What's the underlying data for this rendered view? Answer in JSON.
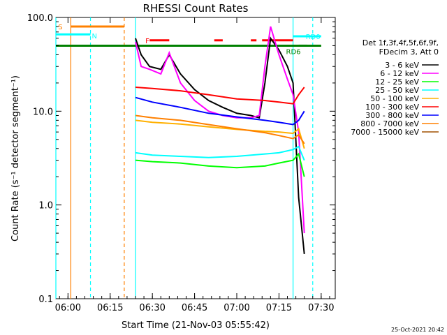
{
  "chart_data": {
    "type": "line",
    "title": "RHESSI Count Rates",
    "xlabel": "Start Time (21-Nov-03 05:55:42)",
    "ylabel": "Count Rate (s⁻¹ detector segment⁻¹)",
    "y_scale": "log",
    "ylim": [
      0.1,
      100.0
    ],
    "y_ticks": [
      "0.1",
      "1.0",
      "10.0",
      "100.0"
    ],
    "xlim": [
      "05:55:42",
      "07:35:00"
    ],
    "x_ticks": [
      "06:00",
      "06:15",
      "06:30",
      "06:45",
      "07:00",
      "07:15",
      "07:30"
    ],
    "legend_position": "right",
    "legend_header": [
      "Det 1f,3f,4f,5f,6f,9f,",
      "FDecim 3, Att 0"
    ],
    "timestamp": "25-Oct-2021 20:42",
    "flag_labels": [
      "S",
      "N",
      "F",
      "RD6",
      "RD0"
    ],
    "series": [
      {
        "name": "3 - 6 keV",
        "color": "#000000",
        "x": [
          "06:24",
          "06:26",
          "06:29",
          "06:33",
          "06:36",
          "06:40",
          "06:45",
          "06:50",
          "06:55",
          "07:00",
          "07:05",
          "07:08",
          "07:10",
          "07:12",
          "07:15",
          "07:18",
          "07:20",
          "07:22",
          "07:24"
        ],
        "values": [
          60,
          40,
          30,
          28,
          40,
          25,
          17,
          13,
          11,
          9.5,
          9,
          8.5,
          20,
          60,
          45,
          30,
          20,
          1.2,
          0.3
        ]
      },
      {
        "name": "6 - 12 keV",
        "color": "#ff00ff",
        "x": [
          "06:24",
          "06:26",
          "06:29",
          "06:33",
          "06:36",
          "06:40",
          "06:45",
          "06:50",
          "06:55",
          "07:00",
          "07:05",
          "07:08",
          "07:10",
          "07:12",
          "07:15",
          "07:18",
          "07:20",
          "07:22",
          "07:24"
        ],
        "values": [
          55,
          30,
          28,
          25,
          42,
          20,
          13,
          10,
          9,
          8.5,
          8.5,
          9,
          30,
          80,
          40,
          22,
          15,
          6,
          0.5
        ]
      },
      {
        "name": "12 - 25 keV",
        "color": "#00ff00",
        "x": [
          "06:24",
          "06:30",
          "06:40",
          "06:50",
          "07:00",
          "07:10",
          "07:15",
          "07:20",
          "07:22",
          "07:24"
        ],
        "values": [
          3.0,
          2.9,
          2.8,
          2.6,
          2.5,
          2.6,
          2.8,
          3.0,
          3.5,
          2.0
        ]
      },
      {
        "name": "25 - 50 keV",
        "color": "#00ffff",
        "x": [
          "06:24",
          "06:30",
          "06:40",
          "06:50",
          "07:00",
          "07:10",
          "07:15",
          "07:20",
          "07:22",
          "07:24"
        ],
        "values": [
          3.6,
          3.4,
          3.3,
          3.2,
          3.3,
          3.5,
          3.6,
          3.9,
          4.2,
          3.0
        ]
      },
      {
        "name": "50 - 100 keV",
        "color": "#ffb000",
        "x": [
          "06:24",
          "06:30",
          "06:40",
          "06:50",
          "07:00",
          "07:10",
          "07:15",
          "07:20",
          "07:22",
          "07:24"
        ],
        "values": [
          8.0,
          7.6,
          7.3,
          6.8,
          6.4,
          6.1,
          6.0,
          5.8,
          6.5,
          4.0
        ]
      },
      {
        "name": "100 - 300 keV",
        "color": "#ff0000",
        "x": [
          "06:24",
          "06:30",
          "06:40",
          "06:50",
          "07:00",
          "07:10",
          "07:15",
          "07:20",
          "07:22",
          "07:24"
        ],
        "values": [
          18,
          17.5,
          16.5,
          15,
          13.5,
          13,
          12.5,
          12,
          15,
          18
        ]
      },
      {
        "name": "300 - 800 keV",
        "color": "#0000ff",
        "x": [
          "06:24",
          "06:30",
          "06:40",
          "06:50",
          "07:00",
          "07:10",
          "07:15",
          "07:20",
          "07:22",
          "07:24"
        ],
        "values": [
          14,
          12.5,
          11,
          9.5,
          8.7,
          8,
          7.6,
          7.2,
          8,
          10
        ]
      },
      {
        "name": "800 - 7000 keV",
        "color": "#ff8000",
        "x": [
          "06:24",
          "06:30",
          "06:40",
          "06:50",
          "07:00",
          "07:10",
          "07:15",
          "07:20",
          "07:22",
          "07:24"
        ],
        "values": [
          9.0,
          8.5,
          8.0,
          7.2,
          6.5,
          5.9,
          5.5,
          5.1,
          5.6,
          4.5
        ]
      },
      {
        "name": "7000 - 15000 keV",
        "color": "#a05000",
        "x": [],
        "values": []
      }
    ],
    "vertical_lines": [
      {
        "time": "05:55:42",
        "color": "#00ffff",
        "style": "solid"
      },
      {
        "time": "06:01",
        "color": "#ff8000",
        "style": "solid"
      },
      {
        "time": "06:08",
        "color": "#00ffff",
        "style": "dashed"
      },
      {
        "time": "06:20",
        "color": "#ff8000",
        "style": "dashed"
      },
      {
        "time": "06:24",
        "color": "#00ffff",
        "style": "solid"
      },
      {
        "time": "07:20",
        "color": "#00ffff",
        "style": "solid"
      },
      {
        "time": "07:27",
        "color": "#00ffff",
        "style": "dashed"
      }
    ],
    "flag_bars": [
      {
        "label": "S",
        "color": "#ff8000",
        "start": "06:01",
        "end": "06:20",
        "level": 80
      },
      {
        "label": "N",
        "color": "#00ffff",
        "start": "05:55:42",
        "end": "06:08",
        "level": 66
      },
      {
        "label": "F",
        "color": "#ff0000",
        "segments": [
          [
            "06:29",
            "06:36"
          ],
          [
            "06:52",
            "06:55"
          ],
          [
            "07:05",
            "07:07"
          ],
          [
            "07:09",
            "07:20"
          ]
        ],
        "level": 57
      },
      {
        "label": "RD6",
        "color": "#008000",
        "segments": [
          [
            "05:55:42",
            "07:30"
          ],
          [
            "07:22",
            "07:25"
          ]
        ],
        "level": 50
      },
      {
        "label": "RD0",
        "color": "#00ffff",
        "start": "07:20",
        "end": "07:30",
        "level": 63
      }
    ]
  }
}
